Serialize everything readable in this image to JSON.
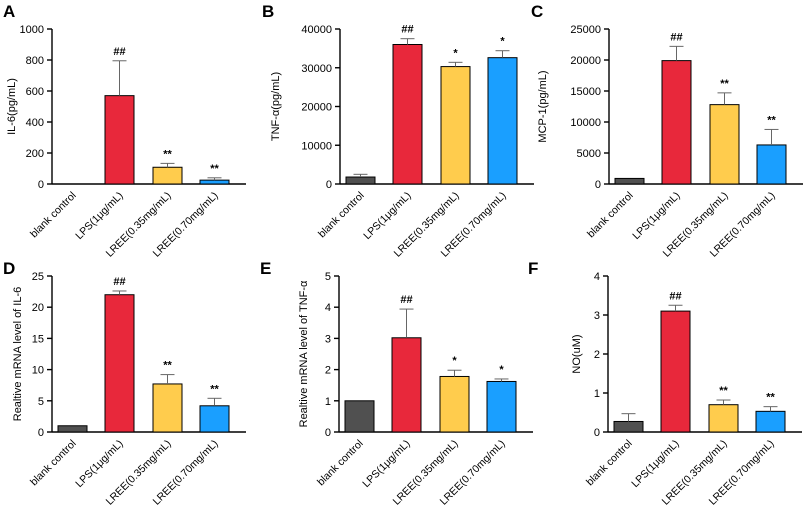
{
  "figure": {
    "colors": {
      "blank": "#505050",
      "lps": "#e8283b",
      "lree035": "#ffcc4d",
      "lree070": "#1a9fff",
      "axis": "#000000",
      "error": "#666666"
    }
  },
  "chart_data": [
    {
      "type": "bar",
      "panel": "A",
      "categories": [
        "blank control",
        "LPS(1μg/mL)",
        "LREE(0.35mg/mL)",
        "LREE(0.70mg/mL)"
      ],
      "values": [
        0,
        570,
        108,
        25
      ],
      "errors": [
        0,
        225,
        25,
        15
      ],
      "annotations": [
        "",
        "##",
        "**",
        "**"
      ],
      "ylabel": "IL-6(pg/mL)",
      "ylim": [
        0,
        1000
      ],
      "yticks": [
        0,
        200,
        400,
        600,
        800,
        1000
      ]
    },
    {
      "type": "bar",
      "panel": "B",
      "categories": [
        "blank control",
        "LPS(1μg/mL)",
        "LREE(0.35mg/mL)",
        "LREE(0.70mg/mL)"
      ],
      "values": [
        1800,
        36000,
        30300,
        32600
      ],
      "errors": [
        700,
        1500,
        1100,
        1800
      ],
      "annotations": [
        "",
        "##",
        "*",
        "*"
      ],
      "ylabel": "TNF-α(pg/mL)",
      "ylim": [
        0,
        40000
      ],
      "yticks": [
        0,
        10000,
        20000,
        30000,
        40000
      ]
    },
    {
      "type": "bar",
      "panel": "C",
      "categories": [
        "blank control",
        "LPS(1μg/mL)",
        "LREE(0.35mg/mL)",
        "LREE(0.70mg/mL)"
      ],
      "values": [
        900,
        19900,
        12800,
        6300
      ],
      "errors": [
        0,
        2300,
        1900,
        2500
      ],
      "annotations": [
        "",
        "##",
        "**",
        "**"
      ],
      "ylabel": "MCP-1(pg/mL)",
      "ylim": [
        0,
        25000
      ],
      "yticks": [
        0,
        5000,
        10000,
        15000,
        20000,
        25000
      ]
    },
    {
      "type": "bar",
      "panel": "D",
      "categories": [
        "blank control",
        "LPS(1μg/mL)",
        "LREE(0.35mg/mL)",
        "LREE(0.70mg/mL)"
      ],
      "values": [
        1,
        22,
        7.7,
        4.2
      ],
      "errors": [
        0,
        0.6,
        1.5,
        1.2
      ],
      "annotations": [
        "",
        "##",
        "**",
        "**"
      ],
      "ylabel": "Realtive mRNA level of IL-6",
      "ylim": [
        0,
        25
      ],
      "yticks": [
        0,
        5,
        10,
        15,
        20,
        25
      ]
    },
    {
      "type": "bar",
      "panel": "E",
      "categories": [
        "blank control",
        "LPS(1μg/mL)",
        "LREE(0.35mg/mL)",
        "LREE(0.70mg/mL)"
      ],
      "values": [
        1,
        3.02,
        1.78,
        1.62
      ],
      "errors": [
        0,
        0.92,
        0.2,
        0.08
      ],
      "annotations": [
        "",
        "##",
        "*",
        "*"
      ],
      "ylabel": "Realtive mRNA level of TNF-α",
      "ylim": [
        0,
        5
      ],
      "yticks": [
        0,
        1,
        2,
        3,
        4,
        5
      ]
    },
    {
      "type": "bar",
      "panel": "F",
      "categories": [
        "blank control",
        "LPS(1μg/mL)",
        "LREE(0.35mg/mL)",
        "LREE(0.70mg/mL)"
      ],
      "values": [
        0.27,
        3.1,
        0.7,
        0.53
      ],
      "errors": [
        0.2,
        0.15,
        0.12,
        0.12
      ],
      "annotations": [
        "",
        "##",
        "**",
        "**"
      ],
      "ylabel": "NO(uM)",
      "ylim": [
        0,
        4
      ],
      "yticks": [
        0,
        1,
        2,
        3,
        4
      ]
    }
  ]
}
